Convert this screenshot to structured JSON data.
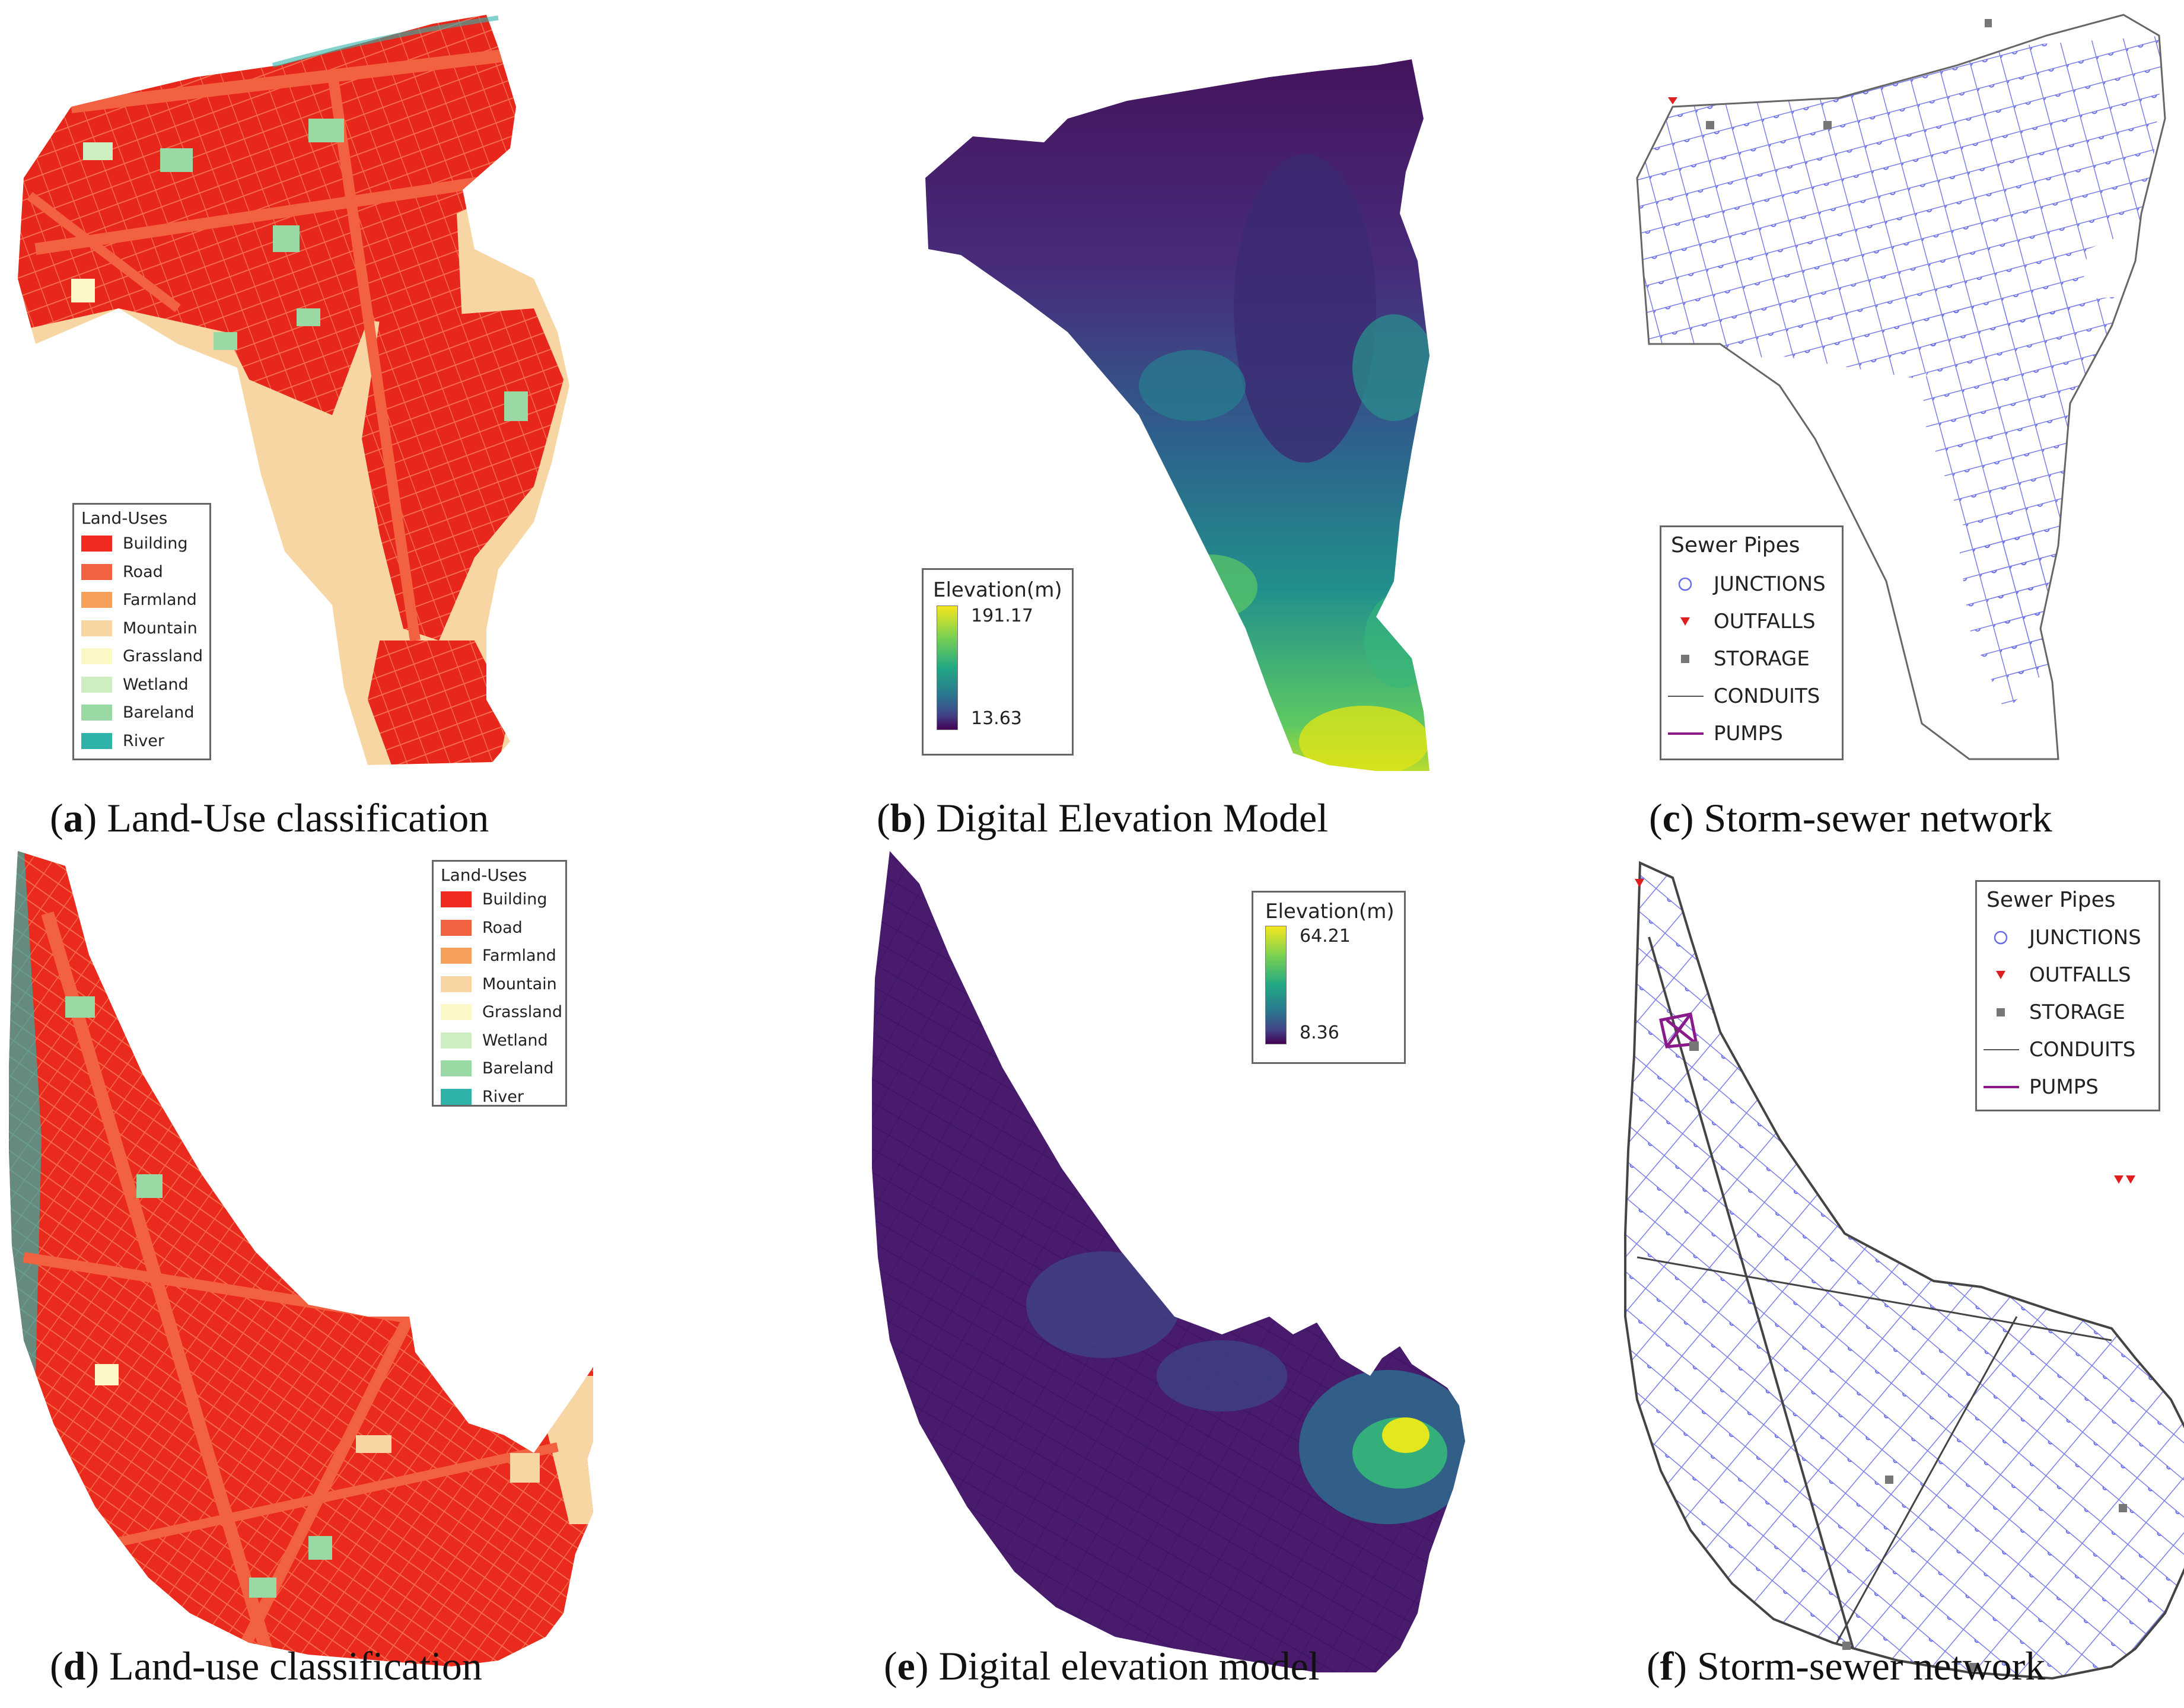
{
  "colors": {
    "building": "#f02a1e",
    "road": "#f26241",
    "farmland": "#f4a05a",
    "mountain": "#f8d6a3",
    "grassland": "#fcf7c6",
    "wetland": "#cdeebf",
    "bareland": "#9ad8a4",
    "river": "#2fb3a9",
    "elev_high": "#e2e81d",
    "elev_mid": "#218f8d",
    "elev_low": "#440d55",
    "junction": "#6a6ee6",
    "outfall": "#dd1f1f",
    "storage": "#777777",
    "conduit": "#555555",
    "pump": "#8a1a8a"
  },
  "land_use_legend": {
    "title": "Land-Uses",
    "items": [
      {
        "label": "Building",
        "color": "#f02a1e"
      },
      {
        "label": "Road",
        "color": "#f26241"
      },
      {
        "label": "Farmland",
        "color": "#f4a05a"
      },
      {
        "label": "Mountain",
        "color": "#f8d6a3"
      },
      {
        "label": "Grassland",
        "color": "#fcf7c6"
      },
      {
        "label": "Wetland",
        "color": "#cdeebf"
      },
      {
        "label": "Bareland",
        "color": "#9ad8a4"
      },
      {
        "label": "River",
        "color": "#2fb3a9"
      }
    ]
  },
  "elevation_b": {
    "title": "Elevation(m)",
    "max": "191.17",
    "min": "13.63"
  },
  "elevation_e": {
    "title": "Elevation(m)",
    "max": "64.21",
    "min": "8.36"
  },
  "sewer_legend": {
    "title": "Sewer Pipes",
    "items": [
      {
        "label": "JUNCTIONS",
        "icon": "junction-circle-icon"
      },
      {
        "label": "OUTFALLS",
        "icon": "outfall-triangle-icon"
      },
      {
        "label": "STORAGE",
        "icon": "storage-square-icon"
      },
      {
        "label": "CONDUITS",
        "icon": "conduit-line-icon"
      },
      {
        "label": "PUMPS",
        "icon": "pump-line-icon"
      }
    ]
  },
  "captions": {
    "a": {
      "letter": "a",
      "text": " Land-Use classification"
    },
    "b": {
      "letter": "b",
      "text": " Digital Elevation Model"
    },
    "c": {
      "letter": "c",
      "text": " Storm-sewer network"
    },
    "d": {
      "letter": "d",
      "text": " Land-use classification"
    },
    "e": {
      "letter": "e",
      "text": " Digital elevation model"
    },
    "f": {
      "letter": "f",
      "text": " Storm-sewer network"
    }
  }
}
